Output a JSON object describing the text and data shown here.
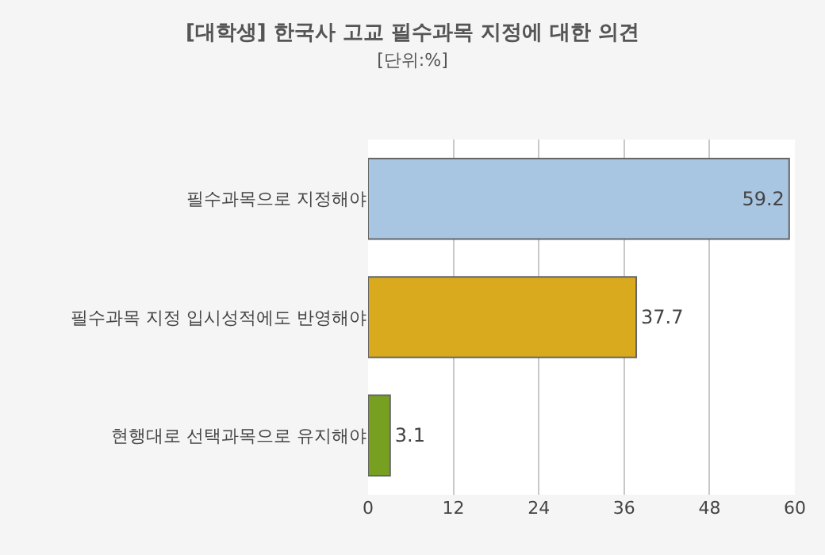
{
  "chart_data": {
    "type": "bar",
    "orientation": "horizontal",
    "title": "[대학생] 한국사 고교 필수과목 지정에 대한 의견",
    "subtitle": "[단위:%]",
    "categories": [
      "필수과목으로 지정해야",
      "필수과목 지정 입시성적에도 반영해야",
      "현행대로 선택과목으로 유지해야"
    ],
    "values": [
      59.2,
      37.7,
      3.1
    ],
    "colors": [
      "#a8c6e2",
      "#d9aa1e",
      "#78a020"
    ],
    "xlim": [
      0,
      60
    ],
    "xticks": [
      0,
      12,
      24,
      36,
      48,
      60
    ],
    "grid": "x",
    "data_labels": true
  }
}
